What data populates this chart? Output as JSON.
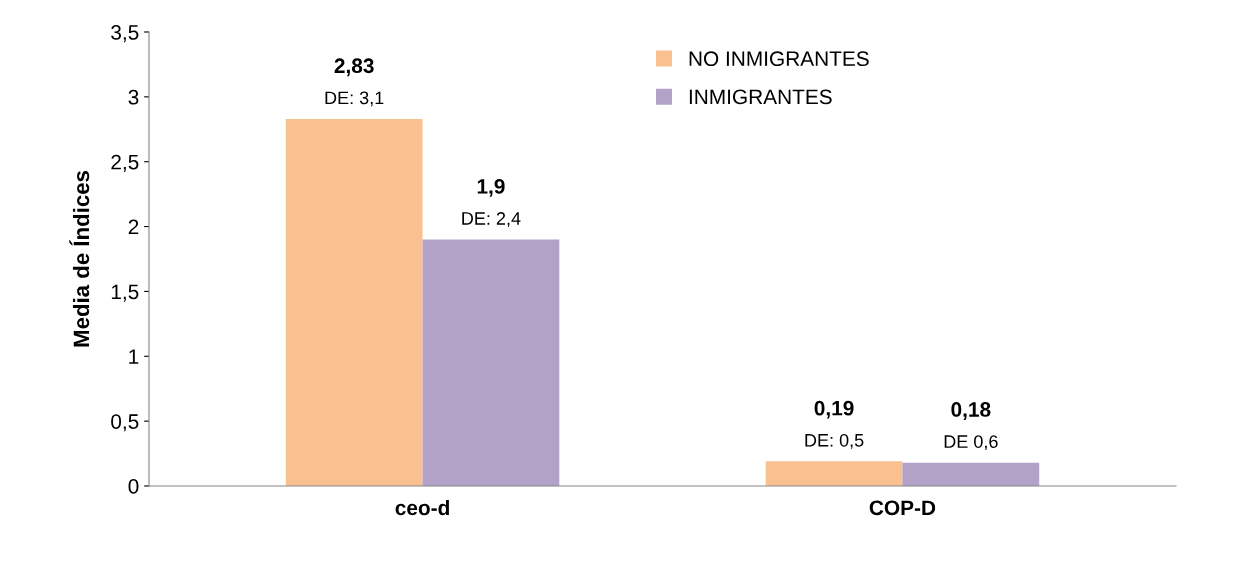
{
  "chart_data": {
    "type": "bar",
    "ylabel": "Media de Índices",
    "categories": [
      "ceo-d",
      "COP-D"
    ],
    "series": [
      {
        "name": "NO INMIGRANTES",
        "color": "#f9c090",
        "values": [
          2.83,
          0.19
        ],
        "value_labels": [
          "2,83\nDE: 3,1",
          "0,19\nDE: 0,5"
        ]
      },
      {
        "name": "INMIGRANTES",
        "color": "#b3a2c7",
        "values": [
          1.9,
          0.18
        ],
        "value_labels": [
          "1,9\nDE: 2,4",
          "0,18\nDE 0,6"
        ]
      }
    ],
    "ylim": [
      0,
      3.5
    ],
    "yticks": [
      0,
      {
        "value": 0.5,
        "label": "0,5"
      },
      1,
      {
        "value": 1.5,
        "label": "1,5"
      },
      2,
      {
        "value": 2.5,
        "label": "2,5"
      },
      3,
      {
        "value": 3.5,
        "label": "3,5"
      }
    ],
    "grid": false,
    "legend": "top right"
  }
}
